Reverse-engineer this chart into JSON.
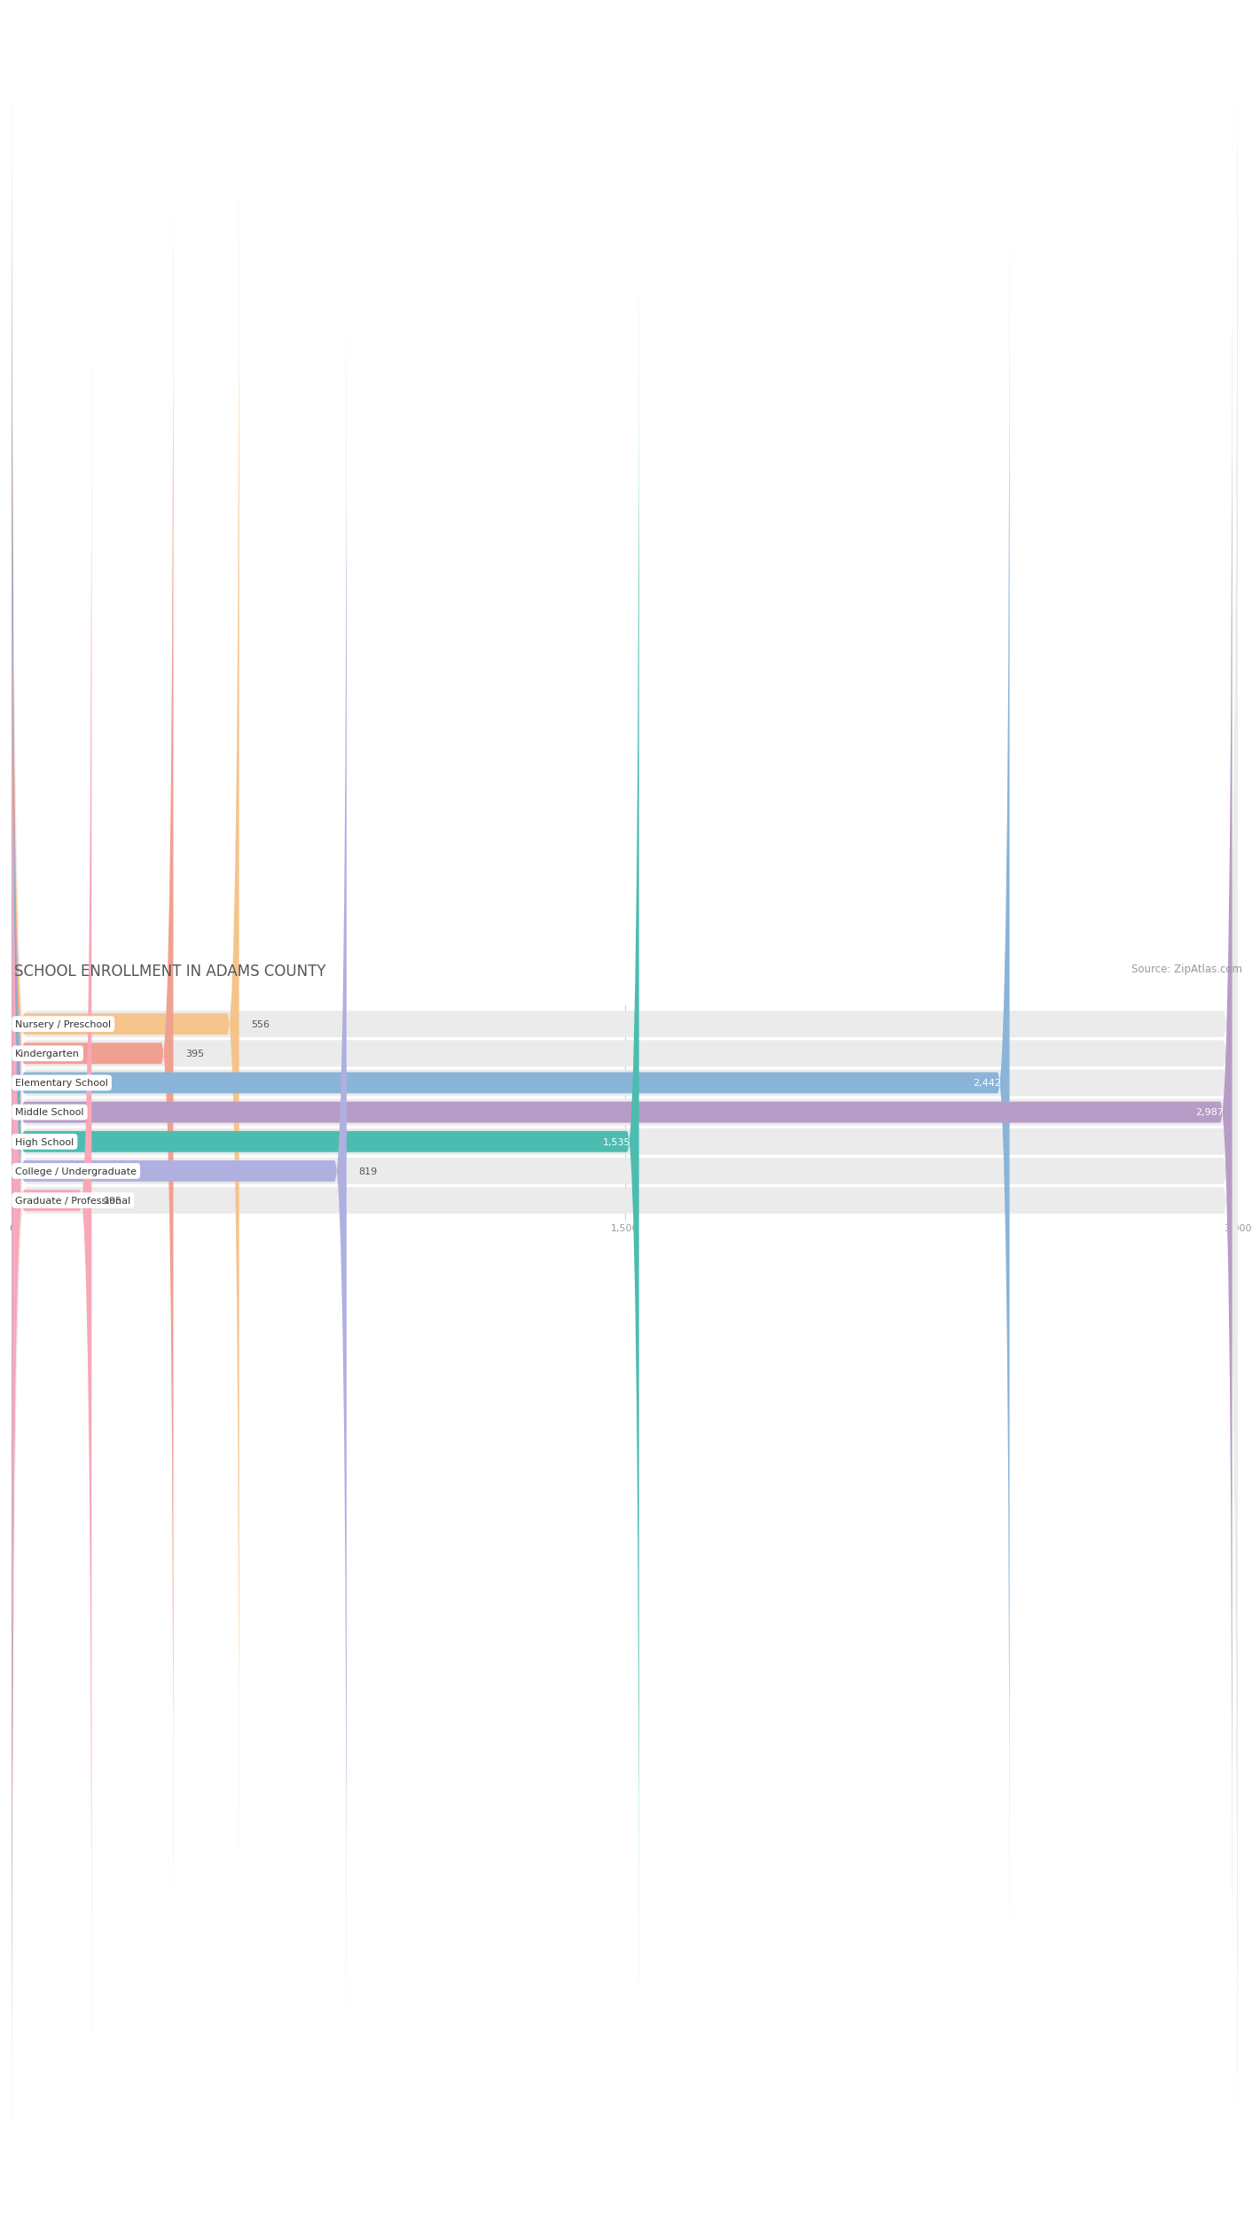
{
  "title": "SCHOOL ENROLLMENT IN ADAMS COUNTY",
  "source": "Source: ZipAtlas.com",
  "categories": [
    "Nursery / Preschool",
    "Kindergarten",
    "Elementary School",
    "Middle School",
    "High School",
    "College / Undergraduate",
    "Graduate / Professional"
  ],
  "values": [
    556,
    395,
    2442,
    2987,
    1535,
    819,
    195
  ],
  "bar_colors": [
    "#f5c48a",
    "#f0a090",
    "#8ab4d8",
    "#b89cc8",
    "#4dbcb0",
    "#b0b0e0",
    "#f8a8b8"
  ],
  "bar_bg_color": "#ebebeb",
  "value_colors": [
    "#555555",
    "#555555",
    "#ffffff",
    "#ffffff",
    "#ffffff",
    "#555555",
    "#555555"
  ],
  "value_inside": [
    false,
    false,
    true,
    true,
    true,
    false,
    false
  ],
  "xlim": [
    0,
    3000
  ],
  "xticks": [
    0,
    1500,
    3000
  ],
  "title_fontsize": 12,
  "source_fontsize": 8.5,
  "label_fontsize": 8,
  "value_fontsize": 8,
  "background_color": "#ffffff"
}
